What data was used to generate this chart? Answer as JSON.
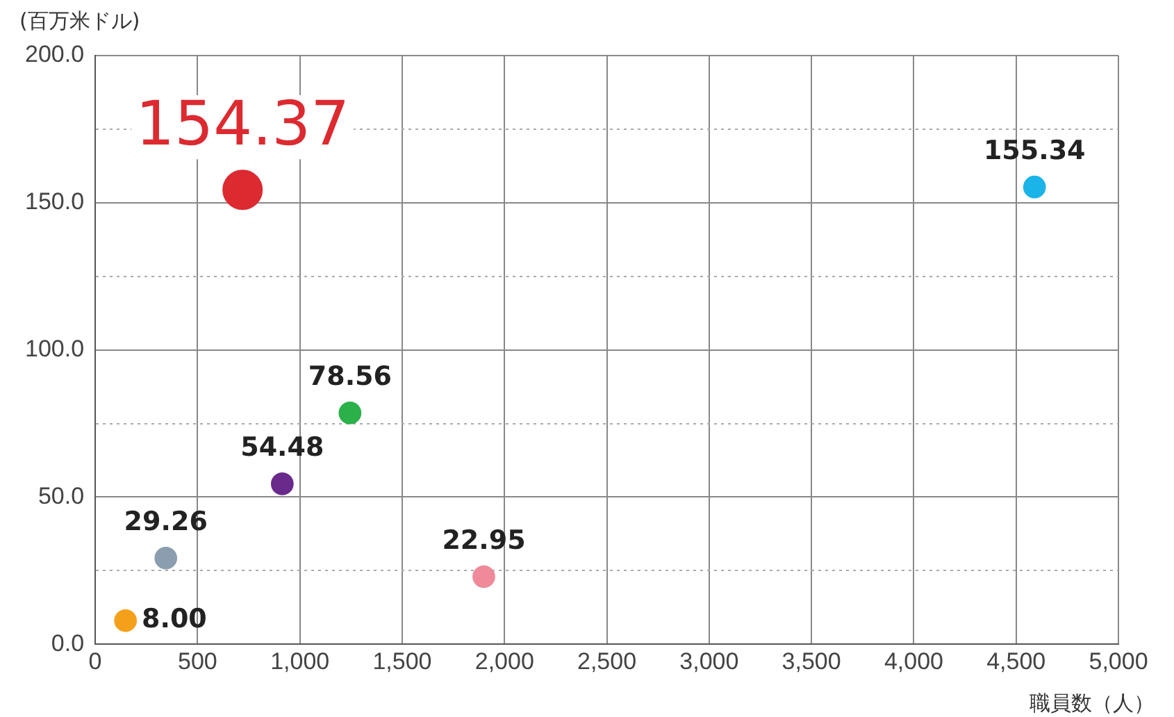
{
  "chart_data": {
    "type": "bubble",
    "ylabel": "(百万米ドル)",
    "xlabel": "職員数（人）",
    "x": [
      720,
      4590,
      1245,
      914,
      345,
      1899,
      148
    ],
    "values": [
      154.37,
      155.34,
      78.56,
      54.48,
      29.26,
      22.95,
      8.0
    ],
    "sizes": [
      1,
      0.3,
      0.3,
      0.3,
      0.3,
      0.3,
      0.3
    ],
    "colors": [
      "#dc2a30",
      "#1ab4e8",
      "#2bb04a",
      "#6a2a8c",
      "#8a9eaf",
      "#ef8a9a",
      "#f5a01a"
    ],
    "value_labels": [
      "154.37",
      "155.34",
      "78.56",
      "54.48",
      "29.26",
      "22.95",
      "8.00"
    ],
    "xlim": [
      0,
      5000
    ],
    "xticks": [
      0,
      500,
      {
        "value": 1000,
        "label": "1,000"
      },
      {
        "value": 1500,
        "label": "1,500"
      },
      {
        "value": 2000,
        "label": "2,000"
      },
      {
        "value": 2500,
        "label": "2,500"
      },
      {
        "value": 3000,
        "label": "3,000"
      },
      {
        "value": 3500,
        "label": "3,500"
      },
      {
        "value": 4000,
        "label": "4,000"
      },
      {
        "value": 4500,
        "label": "4,500"
      },
      {
        "value": 5000,
        "label": "5,000"
      }
    ],
    "ylim": [
      0,
      200
    ],
    "yticks": [
      {
        "value": 0,
        "label": "0.0"
      },
      {
        "value": 25,
        "label": null
      },
      {
        "value": 50,
        "label": "50.0"
      },
      {
        "value": 75,
        "label": null
      },
      {
        "value": 100,
        "label": "100.0"
      },
      {
        "value": 125,
        "label": null
      },
      {
        "value": 150,
        "label": "150.0"
      },
      {
        "value": 175,
        "label": null
      },
      {
        "value": 200,
        "label": "200.0"
      }
    ],
    "grid": true,
    "legend": false
  }
}
